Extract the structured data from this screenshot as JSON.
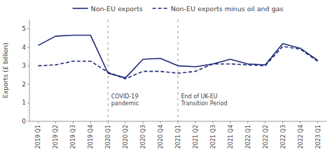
{
  "chart_data": {
    "type": "line",
    "categories": [
      "2019 Q1",
      "2019 Q2",
      "2019 Q3",
      "2019 Q4",
      "2020 Q1",
      "2020 Q2",
      "2020 Q3",
      "2020 Q4",
      "2021 Q1",
      "2021 Q2",
      "2021 Q3",
      "2021 Q4",
      "2022 Q1",
      "2022 Q2",
      "2022 Q3",
      "2022 Q4",
      "2023 Q1"
    ],
    "series": [
      {
        "name": "Non-EU exports",
        "color": "#1e2a78",
        "line_style": "solid",
        "values": [
          4.1,
          4.6,
          4.65,
          4.65,
          2.6,
          2.35,
          3.35,
          3.4,
          3.0,
          2.95,
          3.1,
          3.35,
          3.1,
          3.05,
          4.2,
          3.95,
          3.3
        ]
      },
      {
        "name": "Non-EU exports minus oil and gas",
        "color": "#1e2a78",
        "line_style": "dashed",
        "values": [
          3.0,
          3.05,
          3.25,
          3.25,
          2.65,
          2.3,
          2.7,
          2.7,
          2.6,
          2.7,
          3.1,
          3.1,
          3.05,
          3.0,
          4.05,
          3.9,
          3.25
        ]
      }
    ],
    "annotations": [
      {
        "x": "2020 Q1",
        "text": [
          "COVID-19",
          "pandemic"
        ]
      },
      {
        "x": "2021 Q1",
        "text": [
          "End of UK-EU",
          "Transition Period"
        ]
      }
    ],
    "ylabel": "Exports (£ billion)",
    "ylim": [
      0,
      5.5
    ],
    "yticks": [
      0,
      1,
      2,
      3,
      4,
      5
    ],
    "grid": false,
    "legend": "top"
  }
}
